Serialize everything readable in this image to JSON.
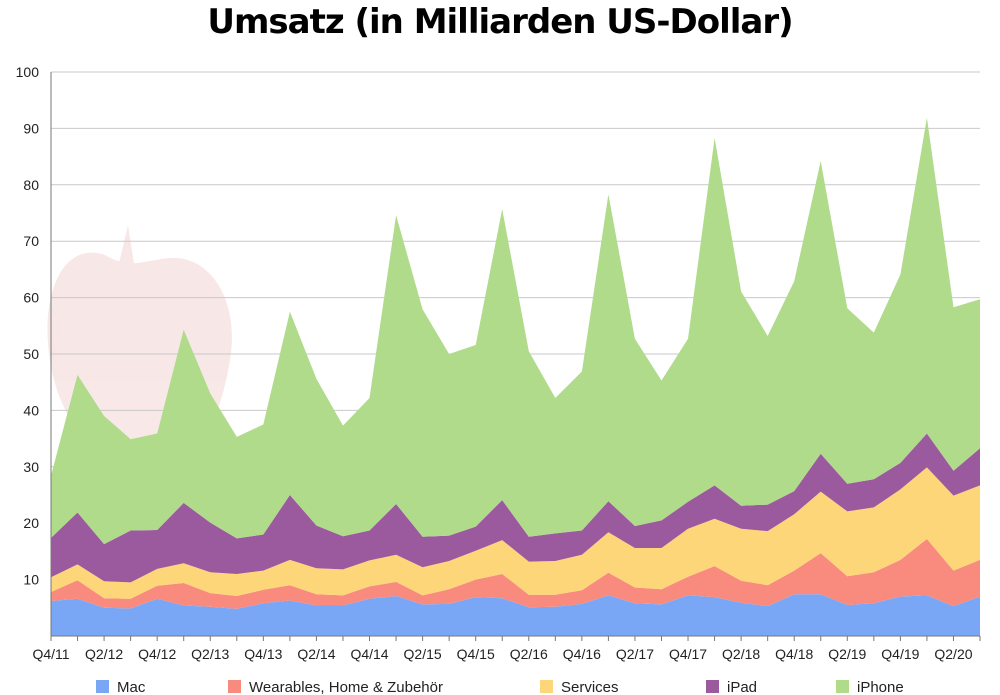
{
  "chart_data": {
    "type": "area",
    "stacked": true,
    "title": "Umsatz (in Milliarden US-Dollar)",
    "ylim": [
      0,
      100
    ],
    "yticks": [
      10,
      20,
      30,
      40,
      50,
      60,
      70,
      80,
      90,
      100
    ],
    "grid": true,
    "legend_position": "bottom",
    "categories": [
      "Q4/11",
      "Q1/12",
      "Q2/12",
      "Q3/12",
      "Q4/12",
      "Q1/13",
      "Q2/13",
      "Q3/13",
      "Q4/13",
      "Q1/14",
      "Q2/14",
      "Q3/14",
      "Q4/14",
      "Q1/15",
      "Q2/15",
      "Q3/15",
      "Q4/15",
      "Q1/16",
      "Q2/16",
      "Q3/16",
      "Q4/16",
      "Q1/17",
      "Q2/17",
      "Q3/17",
      "Q4/17",
      "Q1/18",
      "Q2/18",
      "Q3/18",
      "Q4/18",
      "Q1/19",
      "Q2/19",
      "Q3/19",
      "Q4/19",
      "Q1/20",
      "Q2/20",
      "Q3/20"
    ],
    "xtick_labels": [
      "Q4/11",
      "",
      "Q2/12",
      "",
      "Q4/12",
      "",
      "Q2/13",
      "",
      "Q4/13",
      "",
      "Q2/14",
      "",
      "Q4/14",
      "",
      "Q2/15",
      "",
      "Q4/15",
      "",
      "Q2/16",
      "",
      "Q4/16",
      "",
      "Q2/17",
      "",
      "Q4/17",
      "",
      "Q2/18",
      "",
      "Q4/18",
      "",
      "Q2/19",
      "",
      "Q4/19",
      "",
      "Q2/20",
      ""
    ],
    "series": [
      {
        "name": "Mac",
        "color": "#7aa7f5",
        "values": [
          6.2,
          6.6,
          5.0,
          4.9,
          6.6,
          5.4,
          5.2,
          4.8,
          5.8,
          6.3,
          5.4,
          5.4,
          6.6,
          7.1,
          5.6,
          5.7,
          6.9,
          6.7,
          5.1,
          5.2,
          5.7,
          7.2,
          5.8,
          5.6,
          7.2,
          6.9,
          5.9,
          5.3,
          7.4,
          7.4,
          5.5,
          5.8,
          7.0,
          7.2,
          5.3,
          7.0
        ]
      },
      {
        "name": "Wearables, Home & Zubehör",
        "color": "#f98a7e",
        "values": [
          1.6,
          3.3,
          1.7,
          1.7,
          2.3,
          4.0,
          2.4,
          2.3,
          2.4,
          2.7,
          2.0,
          1.8,
          2.2,
          2.5,
          1.6,
          2.6,
          3.1,
          4.3,
          2.2,
          2.1,
          2.4,
          4.0,
          2.8,
          2.7,
          3.3,
          5.5,
          3.9,
          3.7,
          4.2,
          7.3,
          5.1,
          5.5,
          6.5,
          10.0,
          6.3,
          6.5
        ]
      },
      {
        "name": "Services",
        "color": "#fdd67a",
        "values": [
          2.6,
          2.8,
          3.0,
          2.9,
          3.0,
          3.5,
          3.7,
          3.9,
          3.4,
          4.5,
          4.6,
          4.6,
          4.6,
          4.8,
          5.0,
          5.0,
          5.1,
          6.0,
          5.9,
          6.0,
          6.3,
          7.2,
          7.0,
          7.3,
          8.5,
          8.4,
          9.2,
          9.6,
          10.0,
          10.9,
          11.5,
          11.5,
          12.5,
          12.7,
          13.3,
          13.2
        ]
      },
      {
        "name": "iPad",
        "color": "#9c5a9e",
        "values": [
          7.0,
          9.2,
          6.6,
          9.2,
          6.9,
          10.7,
          8.8,
          6.3,
          6.4,
          11.5,
          7.6,
          5.9,
          5.3,
          9.0,
          5.4,
          4.5,
          4.3,
          7.1,
          4.4,
          4.9,
          4.3,
          5.5,
          3.9,
          4.9,
          4.8,
          5.9,
          4.1,
          4.7,
          4.1,
          6.7,
          4.9,
          5.0,
          4.7,
          6.0,
          4.4,
          6.6
        ]
      },
      {
        "name": "iPhone",
        "color": "#afdb8a",
        "values": [
          11.0,
          24.4,
          22.7,
          16.2,
          17.1,
          30.7,
          22.9,
          18.0,
          19.5,
          32.5,
          26.0,
          19.6,
          23.5,
          51.2,
          40.3,
          32.2,
          32.2,
          51.6,
          32.9,
          24.0,
          28.2,
          54.4,
          33.2,
          24.8,
          28.9,
          61.6,
          38.0,
          29.9,
          37.2,
          51.9,
          31.1,
          26.0,
          33.4,
          56.0,
          29.0,
          26.4
        ]
      }
    ]
  }
}
